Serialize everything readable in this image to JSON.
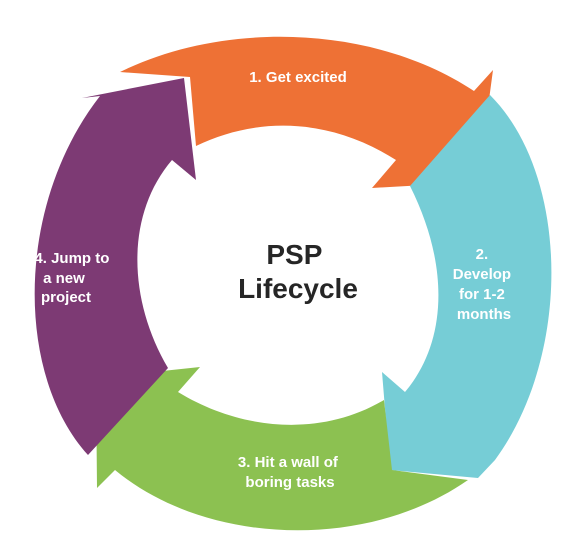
{
  "center": {
    "line1": "PSP",
    "line2": "Lifecycle"
  },
  "stages": [
    {
      "lines": [
        "1. Get excited"
      ],
      "color": "#EE7135"
    },
    {
      "lines": [
        "2.",
        "Develop",
        "for 1-2",
        "months"
      ],
      "color": "#76CDD6"
    },
    {
      "lines": [
        "3. Hit a wall of",
        "boring tasks"
      ],
      "color": "#8CC151"
    },
    {
      "lines": [
        "4. Jump to",
        "a new",
        "project"
      ],
      "color": "#7D3A74"
    }
  ]
}
